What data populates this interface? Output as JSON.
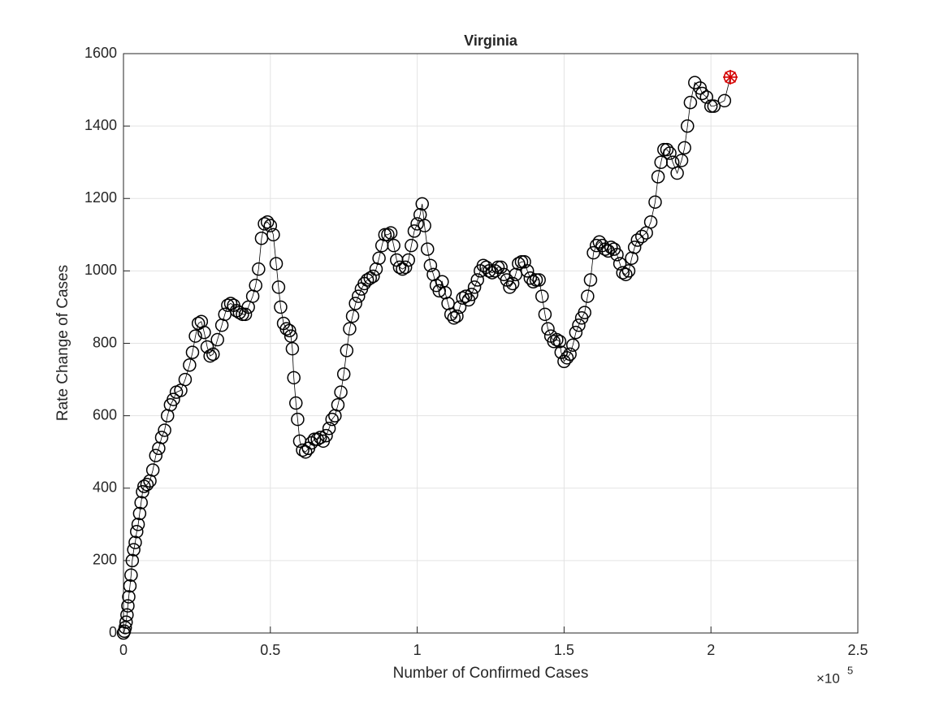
{
  "chart_data": {
    "type": "line",
    "marker": "circle",
    "title": "Virginia",
    "x_label": "Number of Confirmed Cases",
    "y_label": "Rate Change of Cases",
    "x_exponent_base": "×10",
    "x_exponent": "5",
    "color": "#000000",
    "last_point_color": "#d40000",
    "grid": true,
    "xlim": [
      0,
      250000
    ],
    "xticks": [
      0,
      {
        "value": 50000,
        "label": "0.5"
      },
      {
        "value": 100000,
        "label": "1"
      },
      {
        "value": 150000,
        "label": "1.5"
      },
      {
        "value": 200000,
        "label": "2"
      },
      {
        "value": 250000,
        "label": "2.5"
      }
    ],
    "ylim": [
      0,
      1600
    ],
    "yticks": [
      0,
      200,
      400,
      600,
      800,
      1000,
      1200,
      1400,
      1600
    ],
    "x": [
      0,
      300,
      600,
      900,
      1200,
      1500,
      1800,
      2200,
      2600,
      3000,
      3500,
      4000,
      4500,
      5000,
      5500,
      6000,
      6500,
      7000,
      8000,
      9000,
      10000,
      11000,
      12000,
      13000,
      14000,
      15000,
      16000,
      17000,
      18000,
      19500,
      21000,
      22500,
      23500,
      24500,
      25500,
      26500,
      27500,
      28500,
      29500,
      30500,
      32000,
      33500,
      34500,
      35500,
      36500,
      37500,
      38500,
      39500,
      40500,
      41500,
      42500,
      44000,
      45000,
      46000,
      47000,
      48000,
      49000,
      50000,
      51000,
      52000,
      52800,
      53500,
      54500,
      55500,
      56500,
      57000,
      57500,
      58000,
      58700,
      59300,
      60000,
      61000,
      62000,
      63000,
      64000,
      65000,
      66000,
      67000,
      68000,
      69000,
      70000,
      71000,
      72000,
      73000,
      74000,
      75000,
      76000,
      77000,
      78000,
      79000,
      80000,
      81000,
      82000,
      83000,
      84000,
      85000,
      86000,
      87000,
      88000,
      89000,
      90000,
      91000,
      92000,
      93000,
      94000,
      95000,
      96000,
      97000,
      98000,
      99000,
      100000,
      101000,
      101700,
      102500,
      103500,
      104500,
      105500,
      106500,
      107500,
      108500,
      109500,
      110500,
      111500,
      112500,
      113500,
      114500,
      115500,
      116500,
      117500,
      118500,
      119500,
      120500,
      121500,
      122500,
      123500,
      124500,
      125500,
      126500,
      127500,
      128500,
      129500,
      130500,
      131500,
      132500,
      133500,
      134500,
      135500,
      136500,
      137500,
      138500,
      139500,
      140500,
      141500,
      142500,
      143500,
      144500,
      145500,
      146500,
      147500,
      148500,
      149000,
      150000,
      151000,
      152000,
      153000,
      154000,
      155000,
      156000,
      157000,
      158000,
      159000,
      160000,
      161000,
      162000,
      163000,
      164000,
      165000,
      166000,
      167000,
      168000,
      169000,
      170000,
      171000,
      172000,
      173000,
      174000,
      175000,
      176500,
      178000,
      179500,
      181000,
      182000,
      183000,
      184000,
      185000,
      186000,
      187000,
      188500,
      190000,
      191000,
      192000,
      193000,
      194500,
      196300,
      197000,
      198500,
      200000,
      201000,
      204600,
      206600
    ],
    "values": [
      0,
      5,
      15,
      30,
      50,
      75,
      100,
      130,
      160,
      200,
      230,
      250,
      280,
      300,
      330,
      360,
      390,
      405,
      410,
      420,
      450,
      490,
      510,
      540,
      560,
      600,
      630,
      645,
      665,
      670,
      700,
      740,
      775,
      820,
      855,
      860,
      830,
      790,
      765,
      770,
      810,
      850,
      880,
      905,
      910,
      905,
      890,
      885,
      880,
      880,
      900,
      930,
      960,
      1005,
      1090,
      1130,
      1135,
      1125,
      1100,
      1020,
      955,
      900,
      855,
      840,
      835,
      820,
      785,
      705,
      635,
      590,
      530,
      505,
      500,
      510,
      525,
      535,
      535,
      540,
      530,
      545,
      565,
      590,
      600,
      630,
      665,
      715,
      780,
      840,
      875,
      910,
      930,
      950,
      965,
      975,
      980,
      985,
      1005,
      1035,
      1070,
      1100,
      1100,
      1105,
      1070,
      1030,
      1010,
      1005,
      1010,
      1030,
      1070,
      1110,
      1130,
      1155,
      1185,
      1125,
      1060,
      1015,
      990,
      960,
      945,
      970,
      940,
      910,
      880,
      870,
      875,
      900,
      925,
      930,
      920,
      935,
      955,
      975,
      1000,
      1015,
      1010,
      1000,
      995,
      1000,
      1010,
      1010,
      990,
      975,
      955,
      965,
      990,
      1020,
      1025,
      1025,
      1000,
      980,
      970,
      975,
      975,
      930,
      880,
      840,
      820,
      805,
      810,
      805,
      775,
      750,
      760,
      770,
      795,
      830,
      850,
      870,
      885,
      930,
      975,
      1050,
      1070,
      1080,
      1070,
      1060,
      1055,
      1065,
      1060,
      1045,
      1020,
      995,
      990,
      1000,
      1035,
      1065,
      1085,
      1095,
      1105,
      1135,
      1190,
      1260,
      1300,
      1335,
      1335,
      1325,
      1300,
      1270,
      1305,
      1340,
      1400,
      1465,
      1520,
      1505,
      1490,
      1480,
      1455,
      1455,
      1470,
      1535
    ]
  }
}
